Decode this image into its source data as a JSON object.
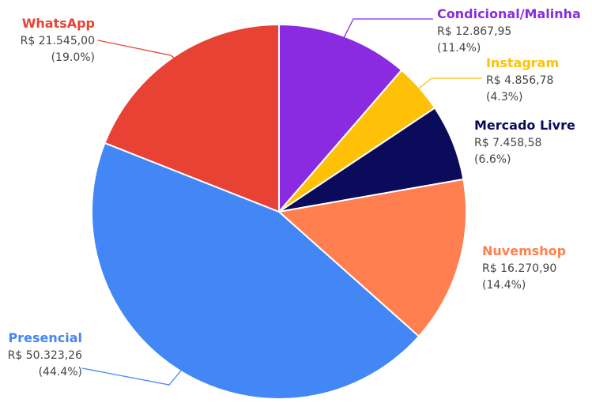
{
  "chart_data": {
    "type": "pie",
    "title": "",
    "slices": [
      {
        "name": "Condicional/Malinha",
        "value_text": "R$ 12.867,95",
        "percent_text": "(11.4%)",
        "value": 12867.95,
        "percent": 11.4,
        "color": "#8A2BE2"
      },
      {
        "name": "Instagram",
        "value_text": "R$ 4.856,78",
        "percent_text": "(4.3%)",
        "value": 4856.78,
        "percent": 4.3,
        "color": "#FFC107"
      },
      {
        "name": "Mercado Livre",
        "value_text": "R$ 7.458,58",
        "percent_text": "(6.6%)",
        "value": 7458.58,
        "percent": 6.6,
        "color": "#0B0B5C"
      },
      {
        "name": "Nuvemshop",
        "value_text": "R$ 16.270,90",
        "percent_text": "(14.4%)",
        "value": 16270.9,
        "percent": 14.4,
        "color": "#FF7F50"
      },
      {
        "name": "Presencial",
        "value_text": "R$ 50.323,26",
        "percent_text": "(44.4%)",
        "value": 50323.26,
        "percent": 44.4,
        "color": "#4287F5"
      },
      {
        "name": "WhatsApp",
        "value_text": "R$ 21.545,00",
        "percent_text": "(19.0%)",
        "value": 21545.0,
        "percent": 19.0,
        "color": "#E84234"
      }
    ]
  }
}
